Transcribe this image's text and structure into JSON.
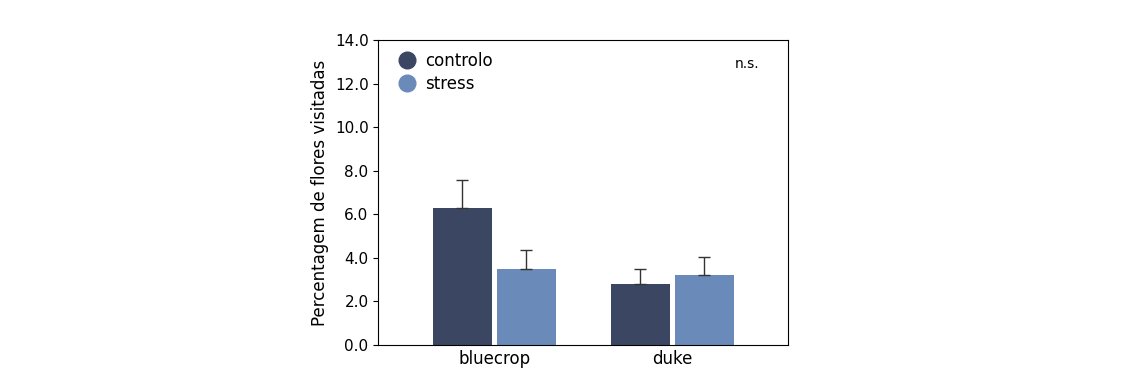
{
  "chart_data": {
    "type": "bar",
    "y_label": "Percentagem de flores visitadas",
    "categories": [
      "bluecrop",
      "duke"
    ],
    "series": [
      {
        "name": "controlo",
        "color": "#3b4662",
        "values": [
          6.3,
          2.8
        ],
        "errors": [
          1.25,
          0.7
        ]
      },
      {
        "name": "stress",
        "color": "#6a8bb9",
        "values": [
          3.5,
          3.2
        ],
        "errors": [
          0.85,
          0.85
        ]
      }
    ],
    "ylim": [
      0,
      14
    ],
    "yticks": [
      {
        "value": 0,
        "label": "0.0"
      },
      {
        "value": 2,
        "label": "2.0"
      },
      {
        "value": 4,
        "label": "4.0"
      },
      {
        "value": 6,
        "label": "6.0"
      },
      {
        "value": 8,
        "label": "8.0"
      },
      {
        "value": 10,
        "label": "10.0"
      },
      {
        "value": 12,
        "label": "12.0"
      },
      {
        "value": 14,
        "label": "14.0"
      }
    ],
    "annotation": "n.s.",
    "legend": "upper left",
    "grid": false
  }
}
